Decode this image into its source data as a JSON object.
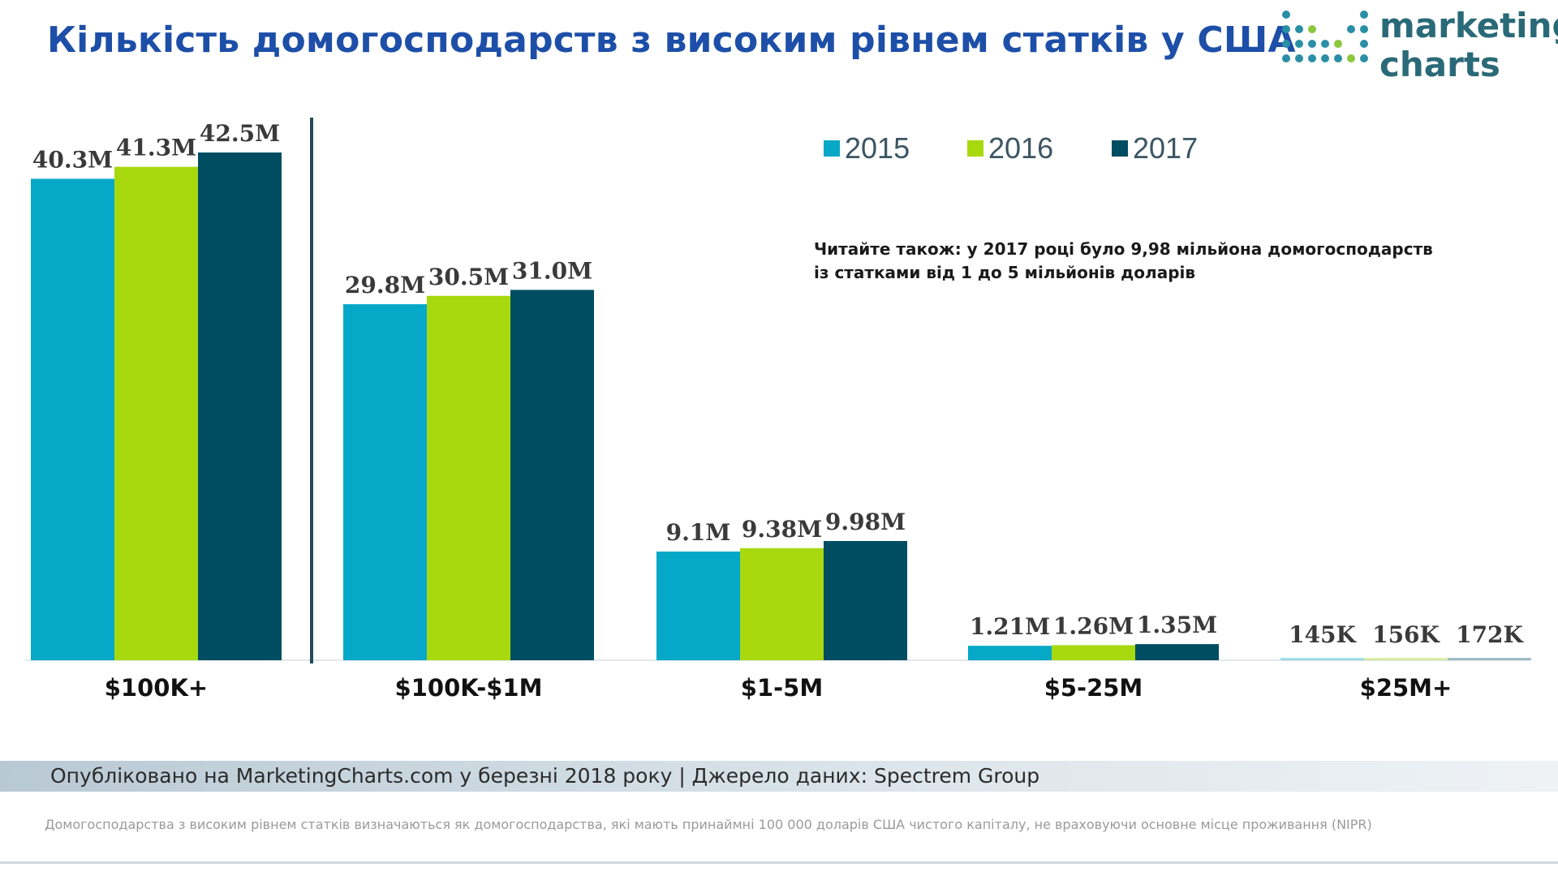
{
  "header": {
    "title": "Кількість домогосподарств з високим рівнем статків у США",
    "logo_line1": "marketing",
    "logo_line2": "charts"
  },
  "note": {
    "line1": "Читайте також: у 2017 році було 9,98 мільйона домогосподарств",
    "line2": "із статками від 1 до 5 мільйонів доларів"
  },
  "footer": {
    "source": "Опубліковано на MarketingCharts.com у березні 2018 року | Джерело даних: Spectrem Group",
    "footnote": "Домогосподарства з високим рівнем статків визначаються як домогосподарства, які мають принаймні 100 000 доларів США чистого капіталу, не враховуючи основне місце проживання (NIPR)"
  },
  "colors": {
    "2015": "#06a8c8",
    "2016": "#a7d90e",
    "2017": "#004d62",
    "title": "#1d4fa8"
  },
  "chart_data": {
    "type": "bar",
    "title": "Кількість домогосподарств з високим рівнем статків у США",
    "categories": [
      "$100K+",
      "$100K-$1M",
      "$1-5M",
      "$5-25M",
      "$25M+"
    ],
    "units": "millions of households",
    "series": [
      {
        "name": "2015",
        "values": [
          40.3,
          29.8,
          9.1,
          1.21,
          0.145
        ],
        "labels": [
          "40.3M",
          "29.8M",
          "9.1M",
          "1.21M",
          "145K"
        ]
      },
      {
        "name": "2016",
        "values": [
          41.3,
          30.5,
          9.38,
          1.26,
          0.156
        ],
        "labels": [
          "41.3M",
          "30.5M",
          "9.38M",
          "1.26M",
          "156K"
        ]
      },
      {
        "name": "2017",
        "values": [
          42.5,
          31.0,
          9.98,
          1.35,
          0.172
        ],
        "labels": [
          "42.5M",
          "31.0M",
          "9.98M",
          "1.35M",
          "172K"
        ]
      }
    ],
    "legend_position": "top-right",
    "grid": false
  }
}
